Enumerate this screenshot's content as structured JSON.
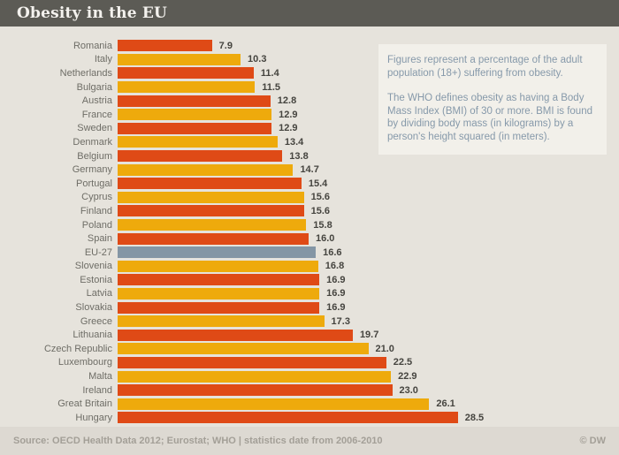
{
  "header": {
    "title": "Obesity in the EU"
  },
  "info_box": {
    "paragraph1": "Figures represent a percentage of the adult population (18+) suffering from obesity.",
    "paragraph2": "The WHO defines obesity as having a Body Mass Index (BMI) of 30 or more. BMI is found by dividing body mass (in kilograms) by a person's height squared (in meters)."
  },
  "footer": {
    "source": "Source: OECD Health Data 2012; Eurostat; WHO | statistics date from 2006-2010",
    "copyright": "© DW"
  },
  "colors": {
    "red": "#df4a16",
    "orange": "#eeaa0c",
    "eu": "#8496a5",
    "header_bg": "#5c5b55",
    "background": "#e6e3dc",
    "footer_bg": "#ddd9d2",
    "info_text": "#8699aa"
  },
  "chart_data": {
    "type": "bar",
    "orientation": "horizontal",
    "title": "Obesity in the EU",
    "value_unit": "percent of adult population (18+) suffering from obesity",
    "xlim": [
      0,
      30
    ],
    "legend": "none",
    "grid": false,
    "rows": [
      {
        "label": "Romania",
        "value": 7.9,
        "display": "7.9",
        "color": "red"
      },
      {
        "label": "Italy",
        "value": 10.3,
        "display": "10.3",
        "color": "orange"
      },
      {
        "label": "Netherlands",
        "value": 11.4,
        "display": "11.4",
        "color": "red"
      },
      {
        "label": "Bulgaria",
        "value": 11.5,
        "display": "11.5",
        "color": "orange"
      },
      {
        "label": "Austria",
        "value": 12.8,
        "display": "12.8",
        "color": "red"
      },
      {
        "label": "France",
        "value": 12.9,
        "display": "12.9",
        "color": "orange"
      },
      {
        "label": "Sweden",
        "value": 12.9,
        "display": "12.9",
        "color": "red"
      },
      {
        "label": "Denmark",
        "value": 13.4,
        "display": "13.4",
        "color": "orange"
      },
      {
        "label": "Belgium",
        "value": 13.8,
        "display": "13.8",
        "color": "red"
      },
      {
        "label": "Germany",
        "value": 14.7,
        "display": "14.7",
        "color": "orange"
      },
      {
        "label": "Portugal",
        "value": 15.4,
        "display": "15.4",
        "color": "red"
      },
      {
        "label": "Cyprus",
        "value": 15.6,
        "display": "15.6",
        "color": "orange"
      },
      {
        "label": "Finland",
        "value": 15.6,
        "display": "15.6",
        "color": "red"
      },
      {
        "label": "Poland",
        "value": 15.8,
        "display": "15.8",
        "color": "orange"
      },
      {
        "label": "Spain",
        "value": 16.0,
        "display": "16.0",
        "color": "red"
      },
      {
        "label": "EU-27",
        "value": 16.6,
        "display": "16.6",
        "color": "eu"
      },
      {
        "label": "Slovenia",
        "value": 16.8,
        "display": "16.8",
        "color": "orange"
      },
      {
        "label": "Estonia",
        "value": 16.9,
        "display": "16.9",
        "color": "red"
      },
      {
        "label": "Latvia",
        "value": 16.9,
        "display": "16.9",
        "color": "orange"
      },
      {
        "label": "Slovakia",
        "value": 16.9,
        "display": "16.9",
        "color": "red"
      },
      {
        "label": "Greece",
        "value": 17.3,
        "display": "17.3",
        "color": "orange"
      },
      {
        "label": "Lithuania",
        "value": 19.7,
        "display": "19.7",
        "color": "red"
      },
      {
        "label": "Czech Republic",
        "value": 21.0,
        "display": "21.0",
        "color": "orange"
      },
      {
        "label": "Luxembourg",
        "value": 22.5,
        "display": "22.5",
        "color": "red"
      },
      {
        "label": "Malta",
        "value": 22.9,
        "display": "22.9",
        "color": "orange"
      },
      {
        "label": "Ireland",
        "value": 23.0,
        "display": "23.0",
        "color": "red"
      },
      {
        "label": "Great Britain",
        "value": 26.1,
        "display": "26.1",
        "color": "orange"
      },
      {
        "label": "Hungary",
        "value": 28.5,
        "display": "28.5",
        "color": "red"
      }
    ]
  }
}
